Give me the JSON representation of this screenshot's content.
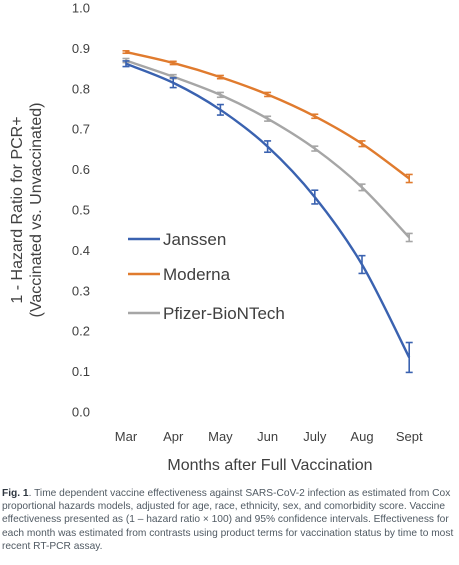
{
  "chart_data": {
    "type": "line",
    "categories": [
      "Mar",
      "Apr",
      "May",
      "Jun",
      "July",
      "Aug",
      "Sept"
    ],
    "ylim": [
      0.0,
      1.0
    ],
    "yticks": [
      "0.0",
      "0.1",
      "0.2",
      "0.3",
      "0.4",
      "0.5",
      "0.6",
      "0.7",
      "0.8",
      "0.9",
      "1.0"
    ],
    "xlabel": "Months after Full Vaccination",
    "ylabel_line1": "1 - Hazard Ratio for PCR+",
    "ylabel_line2": "(Vaccinated vs. Unvaccinated)",
    "grid": false,
    "legend_placement": "center-left",
    "series": [
      {
        "name": "Janssen",
        "color": "#3a62b0",
        "values": [
          0.862,
          0.815,
          0.748,
          0.657,
          0.532,
          0.365,
          0.135
        ],
        "err": [
          0.007,
          0.012,
          0.013,
          0.014,
          0.017,
          0.022,
          0.037
        ]
      },
      {
        "name": "Moderna",
        "color": "#e07b2e",
        "values": [
          0.891,
          0.864,
          0.829,
          0.786,
          0.732,
          0.664,
          0.578
        ],
        "err": [
          0.003,
          0.004,
          0.004,
          0.005,
          0.005,
          0.007,
          0.01
        ]
      },
      {
        "name": "Pfizer-BioNTech",
        "color": "#a6a6a6",
        "values": [
          0.87,
          0.83,
          0.785,
          0.726,
          0.652,
          0.556,
          0.432
        ],
        "err": [
          0.005,
          0.005,
          0.006,
          0.006,
          0.006,
          0.008,
          0.01
        ]
      }
    ]
  },
  "caption": {
    "label": "Fig. 1",
    "text": ". Time dependent vaccine effectiveness against SARS-CoV-2 infection as estimated from Cox proportional hazards models, adjusted for age, race, ethnicity, sex, and comorbidity score. Vaccine effectiveness presented as (1 – hazard ratio × 100) and 95% confidence intervals. Effectiveness for each month was estimated from contrasts using product terms for vaccination status by time to most recent RT-PCR assay."
  }
}
